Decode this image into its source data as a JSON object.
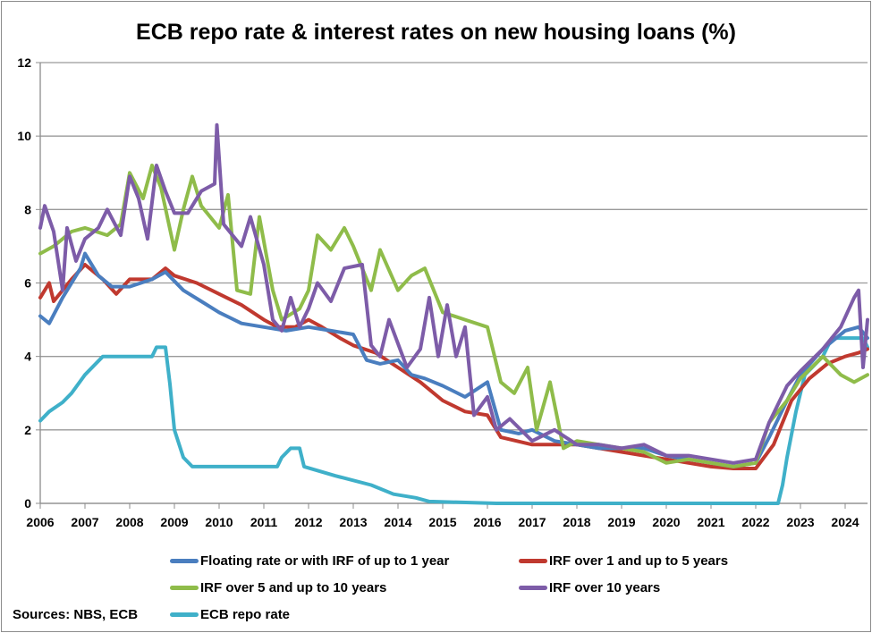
{
  "chart_data": {
    "type": "line",
    "title": "ECB repo rate & interest rates on new housing loans (%)",
    "xlabel": "",
    "ylabel": "",
    "xlim": [
      2006,
      2024.5
    ],
    "ylim": [
      0,
      12
    ],
    "yticks": [
      "0",
      "2",
      "4",
      "6",
      "8",
      "10",
      "12"
    ],
    "xticks": [
      "2006",
      "2007",
      "2008",
      "2009",
      "2010",
      "2011",
      "2012",
      "2013",
      "2014",
      "2015",
      "2016",
      "2017",
      "2018",
      "2019",
      "2020",
      "2021",
      "2022",
      "2023",
      "2024"
    ],
    "grid": "horizontal",
    "legend_position": "bottom",
    "source": "Sources: NBS, ECB",
    "series": [
      {
        "name": "Floating rate or with IRF of up to 1 year",
        "color": "#4a7ebf",
        "x": [
          2006,
          2006.2,
          2006.5,
          2006.9,
          2007,
          2007.3,
          2007.6,
          2008,
          2008.5,
          2008.8,
          2009.2,
          2009.6,
          2010,
          2010.5,
          2011,
          2011.5,
          2012,
          2012.5,
          2013,
          2013.3,
          2013.6,
          2014,
          2014.3,
          2014.6,
          2015,
          2015.5,
          2016,
          2016.3,
          2016.7,
          2017,
          2017.5,
          2018,
          2018.5,
          2019,
          2019.5,
          2020,
          2020.5,
          2021,
          2021.5,
          2022,
          2022.3,
          2022.7,
          2023,
          2023.5,
          2024,
          2024.3,
          2024.5
        ],
        "y": [
          5.1,
          4.9,
          5.6,
          6.4,
          6.8,
          6.2,
          5.9,
          5.9,
          6.1,
          6.3,
          5.8,
          5.5,
          5.2,
          4.9,
          4.8,
          4.7,
          4.8,
          4.7,
          4.6,
          3.9,
          3.8,
          3.9,
          3.5,
          3.4,
          3.2,
          2.9,
          3.3,
          2.0,
          1.9,
          2.0,
          1.7,
          1.6,
          1.5,
          1.5,
          1.5,
          1.3,
          1.2,
          1.1,
          1.0,
          1.1,
          1.8,
          2.8,
          3.5,
          4.2,
          4.7,
          4.8,
          4.5
        ]
      },
      {
        "name": "IRF over 1 and up to 5 years",
        "color": "#c0392f",
        "x": [
          2006,
          2006.2,
          2006.3,
          2006.7,
          2007,
          2007.4,
          2007.7,
          2008,
          2008.5,
          2008.8,
          2009,
          2009.5,
          2010,
          2010.5,
          2011,
          2011.3,
          2011.7,
          2012,
          2012.3,
          2012.7,
          2013,
          2013.5,
          2014,
          2014.5,
          2015,
          2015.5,
          2016,
          2016.3,
          2017,
          2017.5,
          2018,
          2018.5,
          2019,
          2019.5,
          2020,
          2020.5,
          2021,
          2021.5,
          2022,
          2022.4,
          2022.8,
          2023.2,
          2023.6,
          2024,
          2024.3,
          2024.5
        ],
        "y": [
          5.6,
          6.0,
          5.5,
          6.1,
          6.5,
          6.1,
          5.7,
          6.1,
          6.1,
          6.4,
          6.2,
          6.0,
          5.7,
          5.4,
          5.0,
          4.8,
          4.8,
          5.0,
          4.8,
          4.5,
          4.3,
          4.1,
          3.7,
          3.3,
          2.8,
          2.5,
          2.4,
          1.8,
          1.6,
          1.6,
          1.6,
          1.5,
          1.4,
          1.3,
          1.2,
          1.1,
          1.0,
          0.95,
          0.95,
          1.6,
          2.8,
          3.4,
          3.8,
          4.0,
          4.1,
          4.2
        ]
      },
      {
        "name": "IRF over 5 and up to 10 years",
        "color": "#8fbc4a",
        "x": [
          2006,
          2006.3,
          2006.7,
          2007,
          2007.5,
          2007.8,
          2008,
          2008.3,
          2008.5,
          2008.7,
          2009,
          2009.2,
          2009.4,
          2009.6,
          2010,
          2010.2,
          2010.4,
          2010.7,
          2010.9,
          2011.2,
          2011.4,
          2011.8,
          2012,
          2012.2,
          2012.5,
          2012.8,
          2013,
          2013.4,
          2013.6,
          2014,
          2014.3,
          2014.6,
          2015,
          2015.5,
          2016,
          2016.3,
          2016.6,
          2016.9,
          2017.1,
          2017.4,
          2017.7,
          2018,
          2018.5,
          2019,
          2019.5,
          2020,
          2020.5,
          2021,
          2021.5,
          2022,
          2022.3,
          2022.7,
          2023,
          2023.5,
          2023.9,
          2024.2,
          2024.5
        ],
        "y": [
          6.8,
          7.0,
          7.4,
          7.5,
          7.3,
          7.6,
          9.0,
          8.3,
          9.2,
          8.6,
          6.9,
          8.0,
          8.9,
          8.1,
          7.5,
          8.4,
          5.8,
          5.7,
          7.8,
          5.8,
          5.0,
          5.3,
          5.8,
          7.3,
          6.9,
          7.5,
          7.0,
          5.8,
          6.9,
          5.8,
          6.2,
          6.4,
          5.2,
          5.0,
          4.8,
          3.3,
          3.0,
          3.7,
          2.0,
          3.3,
          1.5,
          1.7,
          1.6,
          1.5,
          1.4,
          1.1,
          1.2,
          1.1,
          1.0,
          1.1,
          2.2,
          2.8,
          3.4,
          4.0,
          3.5,
          3.3,
          3.5
        ]
      },
      {
        "name": "IRF over 10 years",
        "color": "#7d5ca8",
        "x": [
          2006,
          2006.1,
          2006.3,
          2006.5,
          2006.6,
          2006.8,
          2007,
          2007.3,
          2007.5,
          2007.8,
          2008,
          2008.2,
          2008.4,
          2008.6,
          2008.8,
          2009,
          2009.3,
          2009.6,
          2009.9,
          2009.95,
          2010.1,
          2010.3,
          2010.5,
          2010.7,
          2011,
          2011.2,
          2011.4,
          2011.6,
          2011.8,
          2012,
          2012.2,
          2012.5,
          2012.8,
          2013.2,
          2013.4,
          2013.6,
          2013.8,
          2014.2,
          2014.5,
          2014.7,
          2014.9,
          2015.1,
          2015.3,
          2015.5,
          2015.7,
          2016,
          2016.2,
          2016.5,
          2017,
          2017.5,
          2018,
          2018.5,
          2019,
          2019.5,
          2020,
          2020.5,
          2021,
          2021.5,
          2022,
          2022.3,
          2022.7,
          2023,
          2023.5,
          2023.9,
          2024.2,
          2024.3,
          2024.4,
          2024.5
        ],
        "y": [
          7.5,
          8.1,
          7.4,
          5.8,
          7.5,
          6.6,
          7.2,
          7.5,
          8.0,
          7.3,
          8.9,
          8.3,
          7.2,
          9.2,
          8.5,
          7.9,
          7.9,
          8.5,
          8.7,
          10.3,
          7.6,
          7.3,
          7.0,
          7.8,
          6.5,
          5.0,
          4.7,
          5.6,
          4.8,
          5.3,
          6.0,
          5.5,
          6.4,
          6.5,
          4.3,
          4.0,
          5.0,
          3.7,
          4.2,
          5.6,
          4.0,
          5.4,
          4.0,
          4.8,
          2.4,
          2.9,
          2.0,
          2.3,
          1.7,
          2.0,
          1.6,
          1.6,
          1.5,
          1.6,
          1.3,
          1.3,
          1.2,
          1.1,
          1.2,
          2.2,
          3.2,
          3.6,
          4.2,
          4.8,
          5.6,
          5.8,
          3.7,
          5.0
        ]
      },
      {
        "name": "ECB repo rate",
        "color": "#3fb0c9",
        "x": [
          2006,
          2006.2,
          2006.5,
          2006.7,
          2007,
          2007.4,
          2008.5,
          2008.6,
          2008.8,
          2008.9,
          2009,
          2009.2,
          2009.4,
          2011.3,
          2011.4,
          2011.6,
          2011.8,
          2011.9,
          2012.6,
          2013.4,
          2013.9,
          2014.4,
          2014.7,
          2016.2,
          2022.5,
          2022.6,
          2022.7,
          2022.9,
          2023.1,
          2023.5,
          2023.7,
          2024.4,
          2024.5
        ],
        "y": [
          2.25,
          2.5,
          2.75,
          3.0,
          3.5,
          4.0,
          4.0,
          4.25,
          4.25,
          3.25,
          2.0,
          1.25,
          1.0,
          1.0,
          1.25,
          1.5,
          1.5,
          1.0,
          0.75,
          0.5,
          0.25,
          0.15,
          0.05,
          0.0,
          0.0,
          0.5,
          1.25,
          2.5,
          3.5,
          4.0,
          4.5,
          4.5,
          4.25
        ]
      }
    ]
  }
}
